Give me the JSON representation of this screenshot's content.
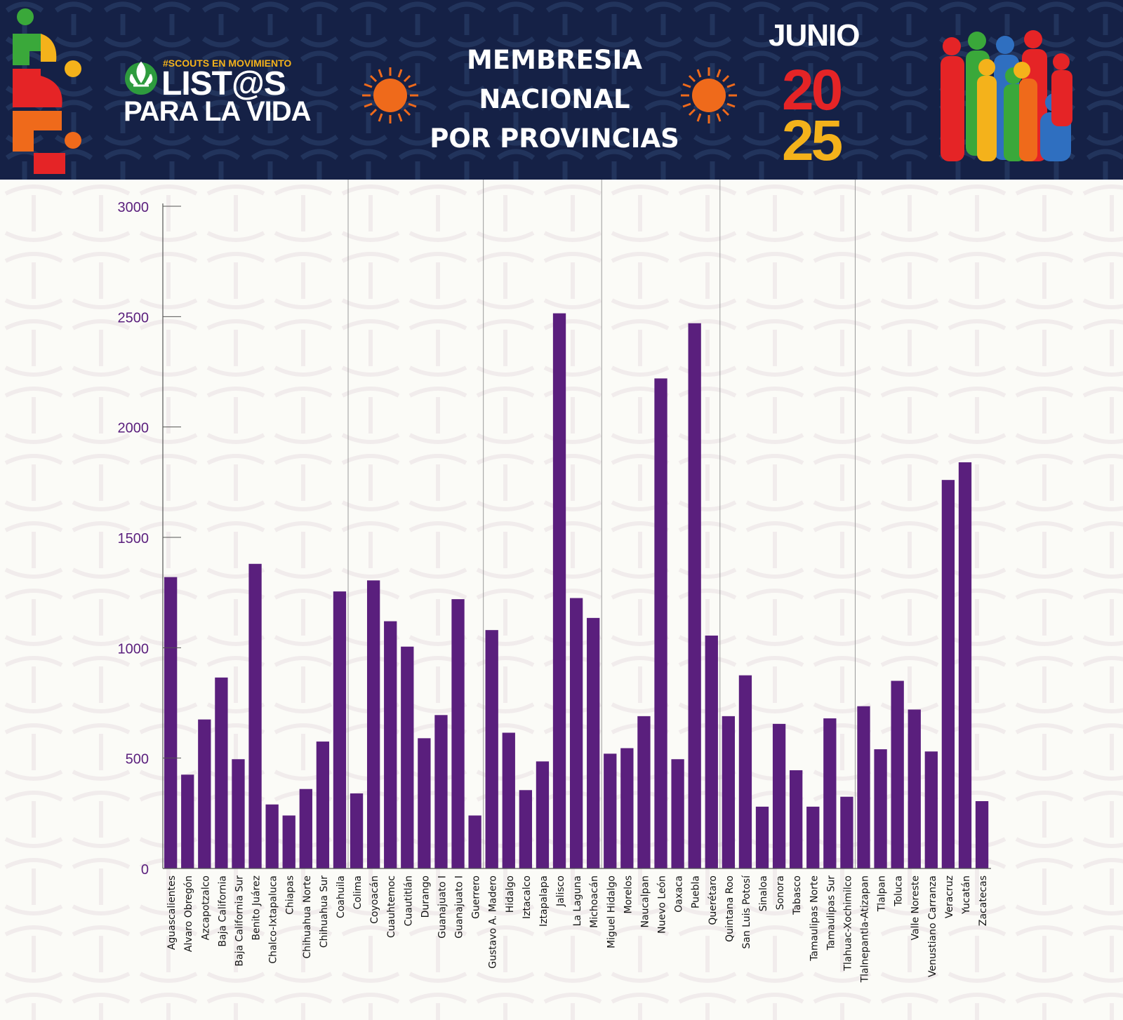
{
  "header": {
    "hashtag": "#SCOUTS EN MOVIMIENTO",
    "brand_line1": "LIST@S",
    "brand_line2": "PARA LA VIDA",
    "title_line1": "MEMBRESIA",
    "title_line2": "NACIONAL",
    "title_line3": "POR PROVINCIAS",
    "month": "JUNIO",
    "year_top": "20",
    "year_bottom": "25",
    "colors": {
      "banner": "#152146",
      "sun": "#ef6a1b",
      "red": "#e52426",
      "yellow": "#f4b21b",
      "green": "#3aa83a",
      "blue": "#2f6fc0",
      "bar": "#5a1f7d"
    },
    "icons": [
      "scout-fleur-de-lis-icon",
      "sun-icon",
      "scouts-silhouette-group"
    ]
  },
  "chart_data": {
    "type": "bar",
    "categories": [
      "Aguascalientes",
      "Alvaro Obregón",
      "Azcapotzalco",
      "Baja California",
      "Baja California Sur",
      "Benito Juárez",
      "Chalco-Ixtapaluca",
      "Chiapas",
      "Chihuahua Norte",
      "Chihuahua Sur",
      "Coahuila",
      "Colima",
      "Coyoacán",
      "Cuauhtemoc",
      "Cuautitlán",
      "Durango",
      "Guanajuato I",
      "Guanajuato I",
      "Guerrero",
      "Gustavo A. Madero",
      "Hidalgo",
      "Iztacalco",
      "Iztapalapa",
      "Jalisco",
      "La Laguna",
      "Michoacán",
      "Miguel Hidalgo",
      "Morelos",
      "Naucalpan",
      "Nuevo León",
      "Oaxaca",
      "Puebla",
      "Querétaro",
      "Quintana Roo",
      "San Luis Potosí",
      "Sinaloa",
      "Sonora",
      "Tabasco",
      "Tamaulipas Norte",
      "Tamaulipas Sur",
      "Tlahuac-Xochimilco",
      "Tlalnepantla-Atizapan",
      "Tlalpan",
      "Toluca",
      "Valle Noreste",
      "Venustiano Carranza",
      "Veracruz",
      "Yucatán",
      "Zacatecas"
    ],
    "values": [
      1320,
      425,
      675,
      865,
      495,
      1380,
      290,
      240,
      360,
      575,
      1255,
      340,
      1305,
      1120,
      1005,
      590,
      695,
      1220,
      240,
      1080,
      615,
      355,
      485,
      2515,
      1225,
      1135,
      520,
      545,
      690,
      2220,
      495,
      2470,
      1055,
      690,
      875,
      280,
      655,
      445,
      280,
      680,
      325,
      735,
      540,
      850,
      720,
      530,
      1760,
      1840,
      305
    ],
    "yticks": [
      "0",
      "500",
      "1000",
      "1500",
      "2000",
      "2500",
      "3000"
    ],
    "ylim": [
      0,
      3000
    ],
    "grid": false
  }
}
